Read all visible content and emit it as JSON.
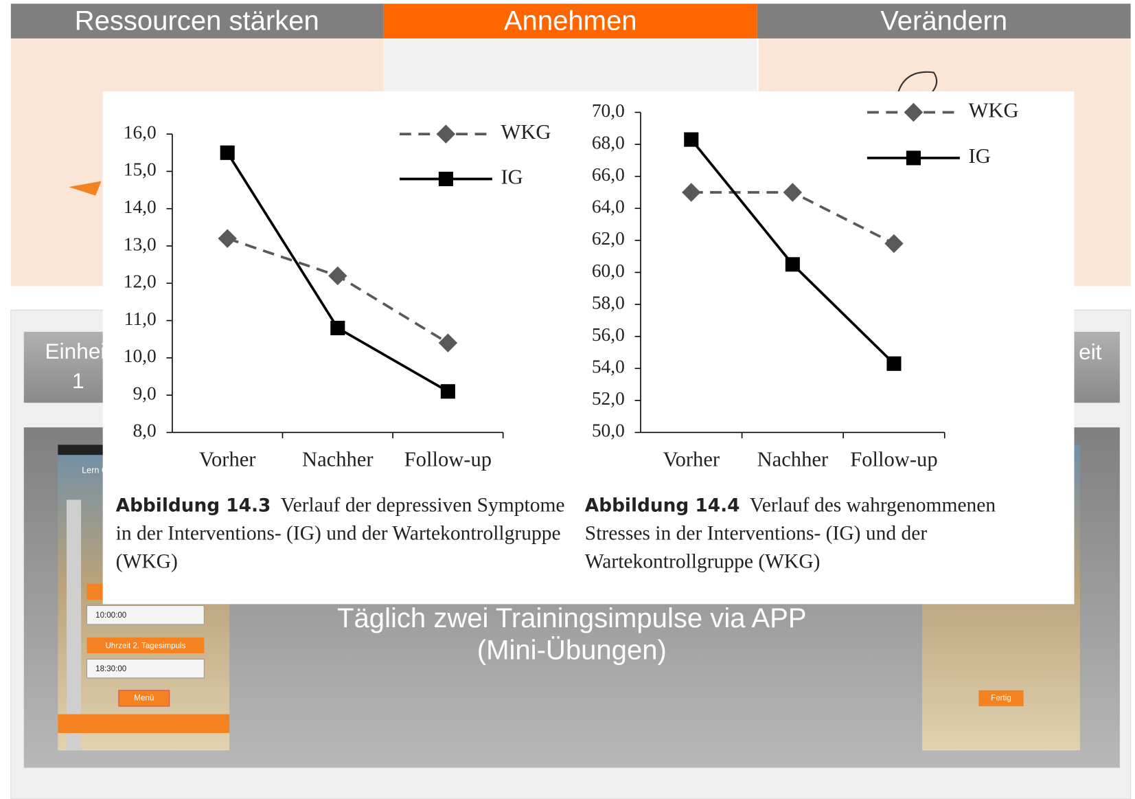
{
  "slide": {
    "tabs": [
      "Ressourcen stärken",
      "Annehmen",
      "Verändern"
    ],
    "buttons": [
      "Einheit 1",
      "eit"
    ],
    "main_text": "Täglich zwei Trainingsimpulse via APP (Mini-Übungen)",
    "phone_left": {
      "brand": "Lern Gesu",
      "time1": "10:00:00",
      "label2": "Uhrzeit 2. Tagesimpuls",
      "time2": "18:30:00",
      "button": "Menü"
    },
    "phone_right": {
      "button": "Fertig"
    }
  },
  "chart_data": [
    {
      "type": "line",
      "categories": [
        "Vorher",
        "Nachher",
        "Follow-up"
      ],
      "series": [
        {
          "name": "WKG",
          "color": "#595959",
          "line_style": "dashed",
          "marker": "diamond",
          "values": [
            13.2,
            12.2,
            10.4
          ]
        },
        {
          "name": "IG",
          "color": "#000000",
          "line_style": "solid",
          "marker": "square",
          "values": [
            15.5,
            10.8,
            9.1
          ]
        }
      ],
      "ylim": [
        8,
        16
      ],
      "yticks": [
        {
          "value": 8,
          "label": "8,0"
        },
        {
          "value": 9,
          "label": "9,0"
        },
        {
          "value": 10,
          "label": "10,0"
        },
        {
          "value": 11,
          "label": "11,0"
        },
        {
          "value": 12,
          "label": "12,0"
        },
        {
          "value": 13,
          "label": "13,0"
        },
        {
          "value": 14,
          "label": "14,0"
        },
        {
          "value": 15,
          "label": "15,0"
        },
        {
          "value": 16,
          "label": "16,0"
        }
      ],
      "caption_label": "Abbildung 14.3",
      "caption": "Verlauf der depressiven Symptome in der Interventions- (IG) und der Wartekontrollgruppe (WKG)"
    },
    {
      "type": "line",
      "categories": [
        "Vorher",
        "Nachher",
        "Follow-up"
      ],
      "series": [
        {
          "name": "WKG",
          "color": "#595959",
          "line_style": "dashed",
          "marker": "diamond",
          "values": [
            65.0,
            65.0,
            61.8
          ]
        },
        {
          "name": "IG",
          "color": "#000000",
          "line_style": "solid",
          "marker": "square",
          "values": [
            68.3,
            60.5,
            54.3
          ]
        }
      ],
      "ylim": [
        50,
        70
      ],
      "yticks": [
        {
          "value": 50,
          "label": "50,0"
        },
        {
          "value": 52,
          "label": "52,0"
        },
        {
          "value": 54,
          "label": "54,0"
        },
        {
          "value": 56,
          "label": "56,0"
        },
        {
          "value": 58,
          "label": "58,0"
        },
        {
          "value": 60,
          "label": "60,0"
        },
        {
          "value": 62,
          "label": "62,0"
        },
        {
          "value": 64,
          "label": "64,0"
        },
        {
          "value": 66,
          "label": "66,0"
        },
        {
          "value": 68,
          "label": "68,0"
        },
        {
          "value": 70,
          "label": "70,0"
        }
      ],
      "caption_label": "Abbildung 14.4",
      "caption": "Verlauf des wahrgenommenen Stresses in der Interventions- (IG) und der Wartekontrollgruppe (WKG)"
    }
  ]
}
